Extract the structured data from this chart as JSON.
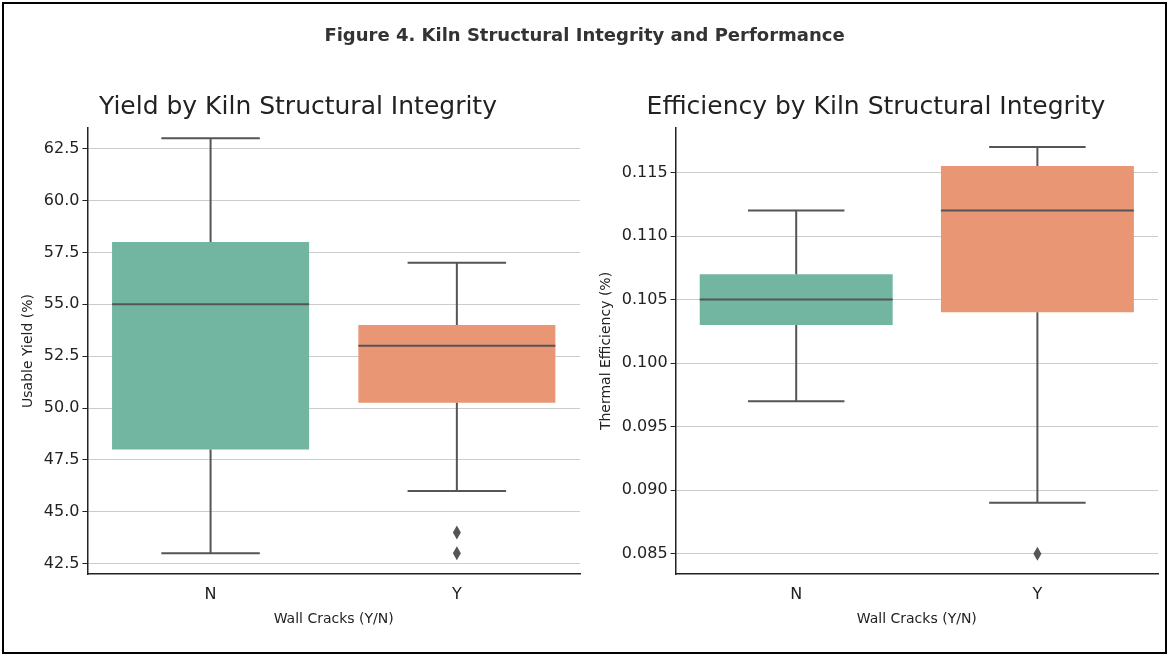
{
  "chart_data": [
    {
      "type": "box",
      "title": "Yield by Kiln Structural Integrity",
      "xlabel": "Wall Cracks (Y/N)",
      "ylabel": "Usable Yield (%)",
      "annotations": [
        "Figure 4. Kiln Structural Integrity and Performance"
      ],
      "categories": [
        "N",
        "Y"
      ],
      "colors": [
        "#72b6a1",
        "#e99675"
      ],
      "boxes": [
        {
          "low": 43,
          "q1": 48,
          "median": 55,
          "q3": 58,
          "high": 63
        },
        {
          "low": 46,
          "q1": 50.25,
          "median": 53,
          "q3": 54,
          "high": 57,
          "outliers": [
            43,
            44
          ]
        }
      ],
      "ylim": [
        42,
        63.5
      ],
      "yticks": [
        {
          "value": 42.5,
          "label": "42.5"
        },
        {
          "value": 45,
          "label": "45.0"
        },
        {
          "value": 47.5,
          "label": "47.5"
        },
        {
          "value": 50,
          "label": "50.0"
        },
        {
          "value": 52.5,
          "label": "52.5"
        },
        {
          "value": 55,
          "label": "55.0"
        },
        {
          "value": 57.5,
          "label": "57.5"
        },
        {
          "value": 60,
          "label": "60.0"
        },
        {
          "value": 62.5,
          "label": "62.5"
        }
      ],
      "grid": "y",
      "legend": false
    },
    {
      "type": "box",
      "title": "Efficiency by Kiln Structural Integrity",
      "xlabel": "Wall Cracks (Y/N)",
      "ylabel": "Thermal Efficiency (%)",
      "categories": [
        "N",
        "Y"
      ],
      "colors": [
        "#72b6a1",
        "#e99675"
      ],
      "boxes": [
        {
          "low": 0.097,
          "q1": 0.103,
          "median": 0.105,
          "q3": 0.107,
          "high": 0.112
        },
        {
          "low": 0.089,
          "q1": 0.104,
          "median": 0.112,
          "q3": 0.1155,
          "high": 0.117,
          "outliers": [
            0.085
          ]
        }
      ],
      "ylim": [
        0.0834,
        0.1185
      ],
      "yticks": [
        {
          "value": 0.085,
          "label": "0.085"
        },
        {
          "value": 0.09,
          "label": "0.090"
        },
        {
          "value": 0.095,
          "label": "0.095"
        },
        {
          "value": 0.1,
          "label": "0.100"
        },
        {
          "value": 0.105,
          "label": "0.105"
        },
        {
          "value": 0.11,
          "label": "0.110"
        },
        {
          "value": 0.115,
          "label": "0.115"
        }
      ],
      "grid": "y",
      "legend": false
    }
  ]
}
